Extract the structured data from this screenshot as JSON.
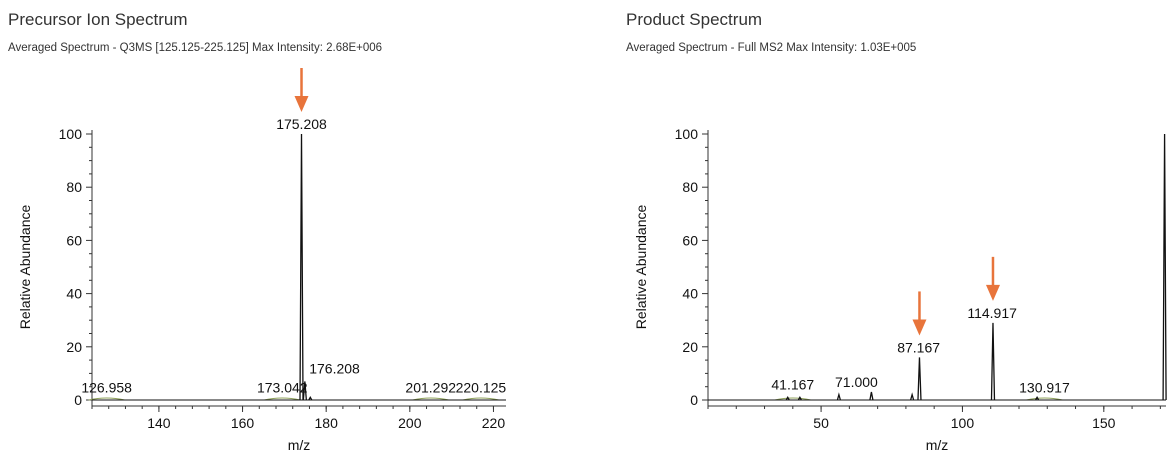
{
  "colors": {
    "accent": "#e8743b",
    "line": "#111111",
    "smooth": "#8fa25a"
  },
  "panels": [
    {
      "title": "Precursor Ion Spectrum",
      "subtitle": "Averaged Spectrum - Q3MS [125.125-225.125]  Max Intensity: 2.68E+006"
    },
    {
      "title": "Product Spectrum",
      "subtitle": "Averaged Spectrum - Full MS2   Max Intensity: 1.03E+005"
    }
  ],
  "chart_data": [
    {
      "type": "line",
      "xlabel": "m/z",
      "ylabel": "Relative Abundance",
      "xlim": [
        124,
        223
      ],
      "ylim": [
        0,
        100
      ],
      "xticks": [
        140,
        160,
        180,
        200,
        220
      ],
      "yticks": [
        0,
        20,
        40,
        60,
        80,
        100
      ],
      "peaks": [
        {
          "x": 174.1,
          "y": 100
        },
        {
          "x": 174.9,
          "y": 7
        },
        {
          "x": 176.2,
          "y": 1
        }
      ],
      "peak_labels": [
        {
          "text": "175.208",
          "x": 174.1,
          "y": 100
        },
        {
          "text": "126.958",
          "x": 127.5,
          "y": 1
        },
        {
          "text": "173.042",
          "x": 169.5,
          "y": 1
        },
        {
          "text": "176.208",
          "x": 182,
          "y": 8
        },
        {
          "text": "201.292",
          "x": 205,
          "y": 1
        },
        {
          "text": "220.125",
          "x": 217,
          "y": 1
        }
      ],
      "arrows": [
        {
          "x": 174.1
        }
      ]
    },
    {
      "type": "line",
      "xlabel": "m/z",
      "ylabel": "Relative Abundance",
      "xlim": [
        10,
        172
      ],
      "ylim": [
        0,
        100
      ],
      "xticks": [
        50,
        100,
        150
      ],
      "yticks": [
        0,
        20,
        40,
        60,
        80,
        100
      ],
      "peaks": [
        {
          "x": 38.2,
          "y": 1
        },
        {
          "x": 42.5,
          "y": 1
        },
        {
          "x": 56.3,
          "y": 2
        },
        {
          "x": 67.8,
          "y": 3
        },
        {
          "x": 82.2,
          "y": 2
        },
        {
          "x": 84.8,
          "y": 16
        },
        {
          "x": 110.8,
          "y": 29
        },
        {
          "x": 126.4,
          "y": 1
        },
        {
          "x": 171.5,
          "y": 100
        }
      ],
      "peak_labels": [
        {
          "text": "41.167",
          "x": 40,
          "y": 2
        },
        {
          "text": "71.000",
          "x": 62.5,
          "y": 3
        },
        {
          "text": "87.167",
          "x": 84.5,
          "y": 16
        },
        {
          "text": "114.917",
          "x": 110.5,
          "y": 29
        },
        {
          "text": "130.917",
          "x": 129,
          "y": 1
        }
      ],
      "arrows": [
        {
          "x": 84.8
        },
        {
          "x": 110.8
        }
      ]
    }
  ]
}
